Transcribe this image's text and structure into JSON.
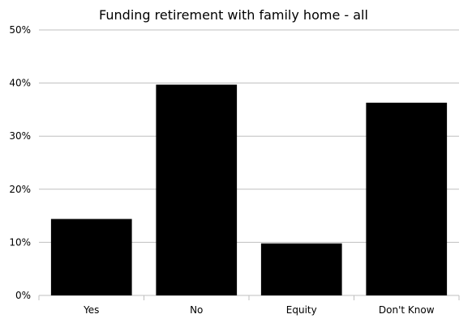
{
  "chart_data": {
    "type": "bar",
    "title": "Funding retirement with family home - all",
    "categories": [
      "Yes",
      "No",
      "Equity",
      "Don't Know"
    ],
    "values": [
      14.4,
      39.7,
      9.8,
      36.3
    ],
    "ylim": [
      0,
      50
    ],
    "yticks": [
      0,
      10,
      20,
      30,
      40,
      50
    ],
    "ytick_labels": [
      "0%",
      "10%",
      "20%",
      "30%",
      "40%",
      "50%"
    ],
    "bar_color": "#000000",
    "grid": true,
    "grid_color": "#bfbfbf",
    "legend": "none"
  }
}
